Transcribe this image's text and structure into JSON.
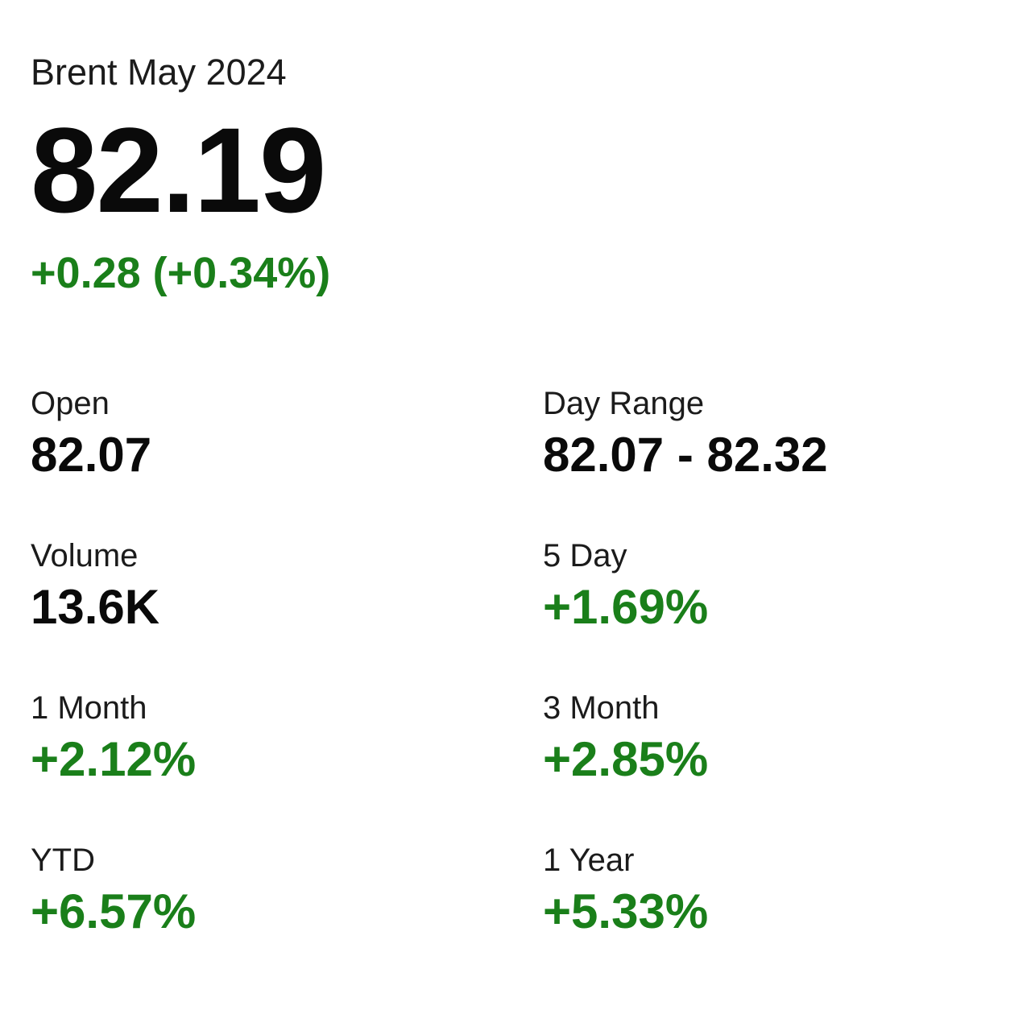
{
  "colors": {
    "positive": "#1a7f1a",
    "text_primary": "#0a0a0a",
    "text_label": "#1b1b1b",
    "background": "#ffffff"
  },
  "quote": {
    "instrument": "Brent May 2024",
    "price": "82.19",
    "change": "+0.28 (+0.34%)"
  },
  "stats": [
    {
      "label": "Open",
      "value": "82.07",
      "positive": false
    },
    {
      "label": "Day Range",
      "value": "82.07 - 82.32",
      "positive": false
    },
    {
      "label": "Volume",
      "value": "13.6K",
      "positive": false
    },
    {
      "label": "5 Day",
      "value": "+1.69%",
      "positive": true
    },
    {
      "label": "1 Month",
      "value": "+2.12%",
      "positive": true
    },
    {
      "label": "3 Month",
      "value": "+2.85%",
      "positive": true
    },
    {
      "label": "YTD",
      "value": "+6.57%",
      "positive": true
    },
    {
      "label": "1 Year",
      "value": "+5.33%",
      "positive": true
    }
  ]
}
